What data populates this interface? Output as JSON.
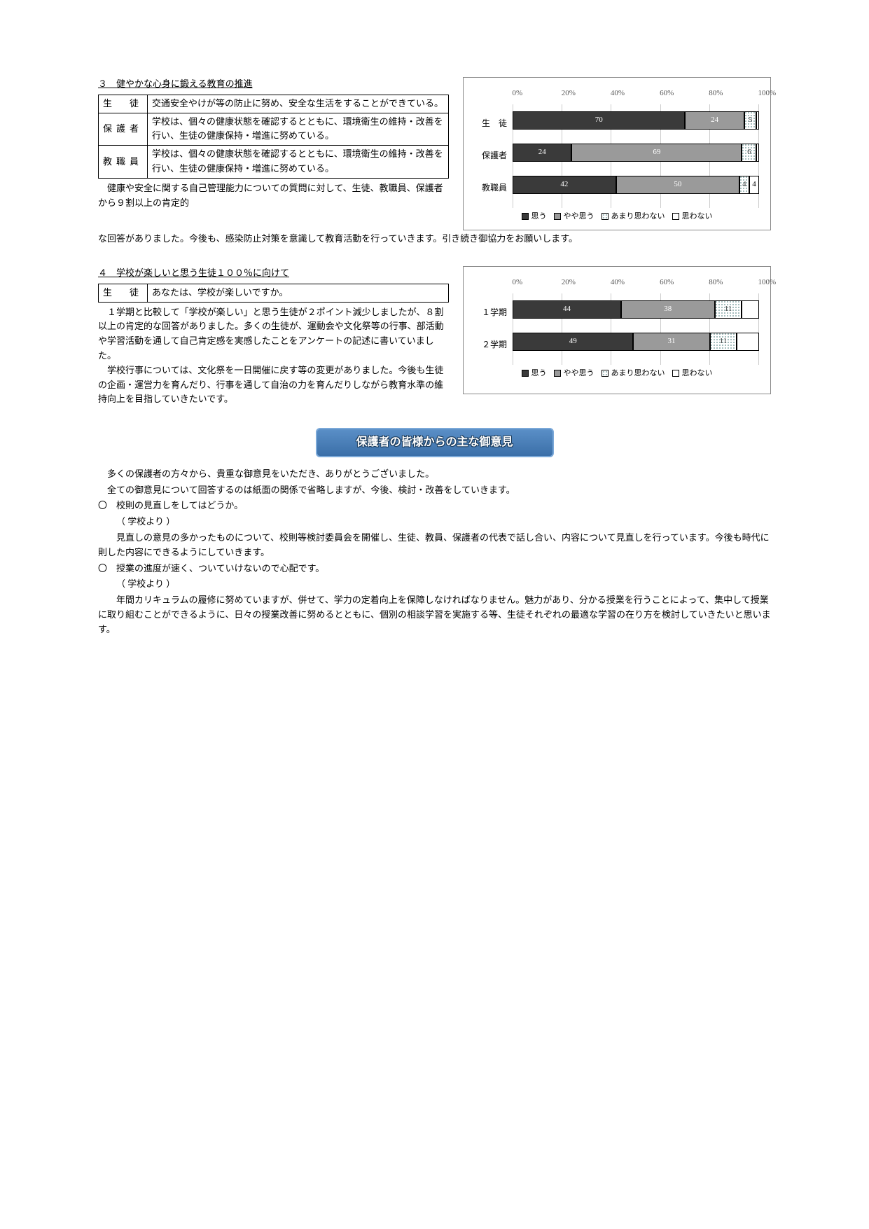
{
  "section3": {
    "title": "３　健やかな心身に鍛える教育の推進",
    "table": {
      "rows": [
        {
          "label": "生　徒",
          "text": "交通安全やけが等の防止に努め、安全な生活をすることができている。"
        },
        {
          "label": "保護者",
          "text": "学校は、個々の健康状態を確認するとともに、環境衛生の維持・改善を行い、生徒の健康保持・増進に努めている。"
        },
        {
          "label": "教職員",
          "text": "学校は、個々の健康状態を確認するとともに、環境衛生の維持・改善を行い、生徒の健康保持・増進に努めている。"
        }
      ]
    },
    "body1": "健康や安全に関する自己管理能力についての質問に対して、生徒、教職員、保護者から９割以上の肯定的",
    "body2": "な回答がありました。今後も、感染防止対策を意識して教育活動を行っていきます。引き続き御協力をお願いします。"
  },
  "section4": {
    "title": "４　学校が楽しいと思う生徒１００％に向けて",
    "table": {
      "rows": [
        {
          "label": "生　徒",
          "text": "あなたは、学校が楽しいですか。"
        }
      ]
    },
    "body": [
      "　１学期と比較して「学校が楽しい」と思う生徒が２ポイント減少しましたが、８割以上の肯定的な回答がありました。多くの生徒が、運動会や文化祭等の行事、部活動や学習活動を通して自己肯定感を実感したことをアンケートの記述に書いていました。",
      "　学校行事については、文化祭を一日開催に戻す等の変更がありました。今後も生徒の企画・運営力を育んだり、行事を通して自治の力を育んだりしながら教育水準の維持向上を目指していきたいです。"
    ]
  },
  "chart3": {
    "type": "stacked-bar-horizontal",
    "xticks": [
      "0%",
      "20%",
      "40%",
      "60%",
      "80%",
      "100%"
    ],
    "xlim": [
      0,
      100
    ],
    "categories": [
      "生　徒",
      "保護者",
      "教職員"
    ],
    "series_labels": [
      "思う",
      "やや思う",
      "あまり思わない",
      "思わない"
    ],
    "series_colors": [
      "#3a3a3a",
      "#9a9a9a",
      "pattern-dots",
      "#ffffff"
    ],
    "data": [
      [
        70,
        24,
        5,
        1
      ],
      [
        24,
        69,
        6,
        1
      ],
      [
        42,
        50,
        4,
        4
      ]
    ],
    "show_value_threshold": 4
  },
  "chart4": {
    "type": "stacked-bar-horizontal",
    "xticks": [
      "0%",
      "20%",
      "40%",
      "60%",
      "80%",
      "100%"
    ],
    "xlim": [
      0,
      100
    ],
    "categories": [
      "１学期",
      "２学期"
    ],
    "series_labels": [
      "思う",
      "やや思う",
      "あまり思わない",
      "思わない"
    ],
    "series_colors": [
      "#3a3a3a",
      "#9a9a9a",
      "pattern-dots",
      "#ffffff"
    ],
    "data": [
      [
        44,
        38,
        11,
        7
      ],
      [
        49,
        31,
        11,
        9
      ]
    ],
    "show_value_threshold": 10
  },
  "banner": "保護者の皆様からの主な御意見",
  "feedback": {
    "intro": [
      "多くの保護者の方々から、貴重な御意見をいただき、ありがとうございました。",
      "全ての御意見について回答するのは紙面の関係で省略しますが、今後、検討・改善をしていきます。"
    ],
    "items": [
      {
        "q": "〇　校則の見直しをしてはどうか。",
        "reply_label": "（ 学校より ）",
        "reply": "見直しの意見の多かったものについて、校則等検討委員会を開催し、生徒、教員、保護者の代表で話し合い、内容について見直しを行っています。今後も時代に則した内容にできるようにしていきます。"
      },
      {
        "q": "〇　授業の進度が速く、ついていけないので心配です。",
        "reply_label": "（ 学校より ）",
        "reply": "年間カリキュラムの履修に努めていますが、併せて、学力の定着向上を保障しなければなりません。魅力があり、分かる授業を行うことによって、集中して授業に取り組むことができるように、日々の授業改善に努めるとともに、個別の相談学習を実施する等、生徒それぞれの最適な学習の在り方を検討していきたいと思います。"
      }
    ]
  }
}
